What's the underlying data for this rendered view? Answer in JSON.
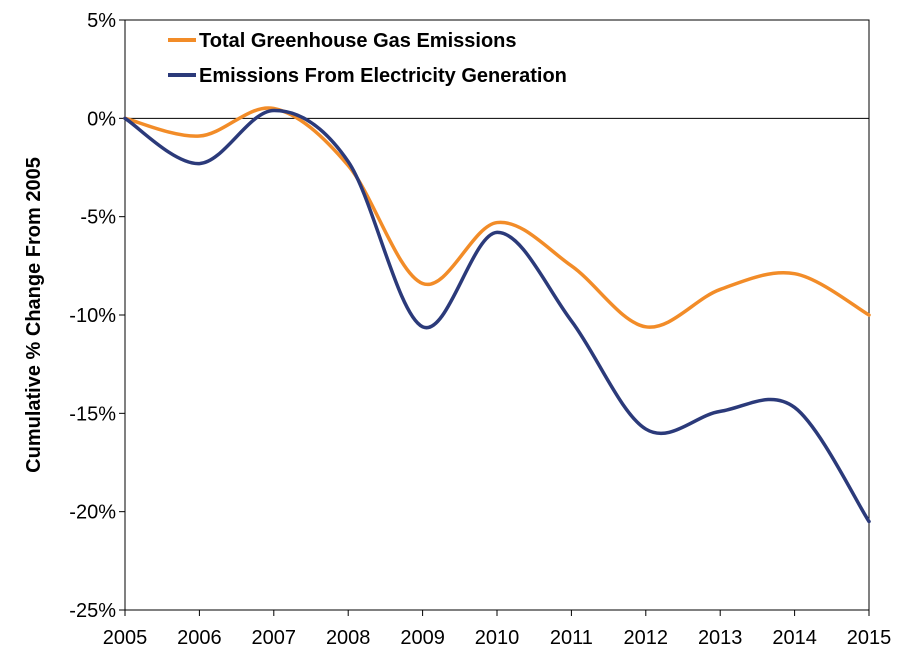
{
  "chart_data": {
    "type": "line",
    "title": "",
    "xlabel": "",
    "ylabel": "Cumulative % Change From 2005",
    "x": [
      2005,
      2006,
      2007,
      2008,
      2009,
      2010,
      2011,
      2012,
      2013,
      2014,
      2015
    ],
    "x_tick_labels": [
      "2005",
      "2006",
      "2007",
      "2008",
      "2009",
      "2010",
      "2011",
      "2012",
      "2013",
      "2014",
      "2015"
    ],
    "y_tick_labels": [
      "5%",
      "0%",
      "-5%",
      "-10%",
      "-15%",
      "-20%",
      "-25%"
    ],
    "ylim": [
      -25,
      5
    ],
    "grid": false,
    "legend_position": "top-left",
    "series": [
      {
        "name": "Total Greenhouse Gas Emissions",
        "color": "#F28C28",
        "values": [
          0,
          -0.9,
          0.5,
          -2.4,
          -8.4,
          -5.3,
          -7.5,
          -10.6,
          -8.7,
          -7.9,
          -10.0
        ]
      },
      {
        "name": "Emissions From Electricity Generation",
        "color": "#2B3A7A",
        "values": [
          0,
          -2.3,
          0.4,
          -2.2,
          -10.6,
          -5.8,
          -10.3,
          -15.8,
          -14.9,
          -14.7,
          -20.5
        ]
      }
    ]
  }
}
